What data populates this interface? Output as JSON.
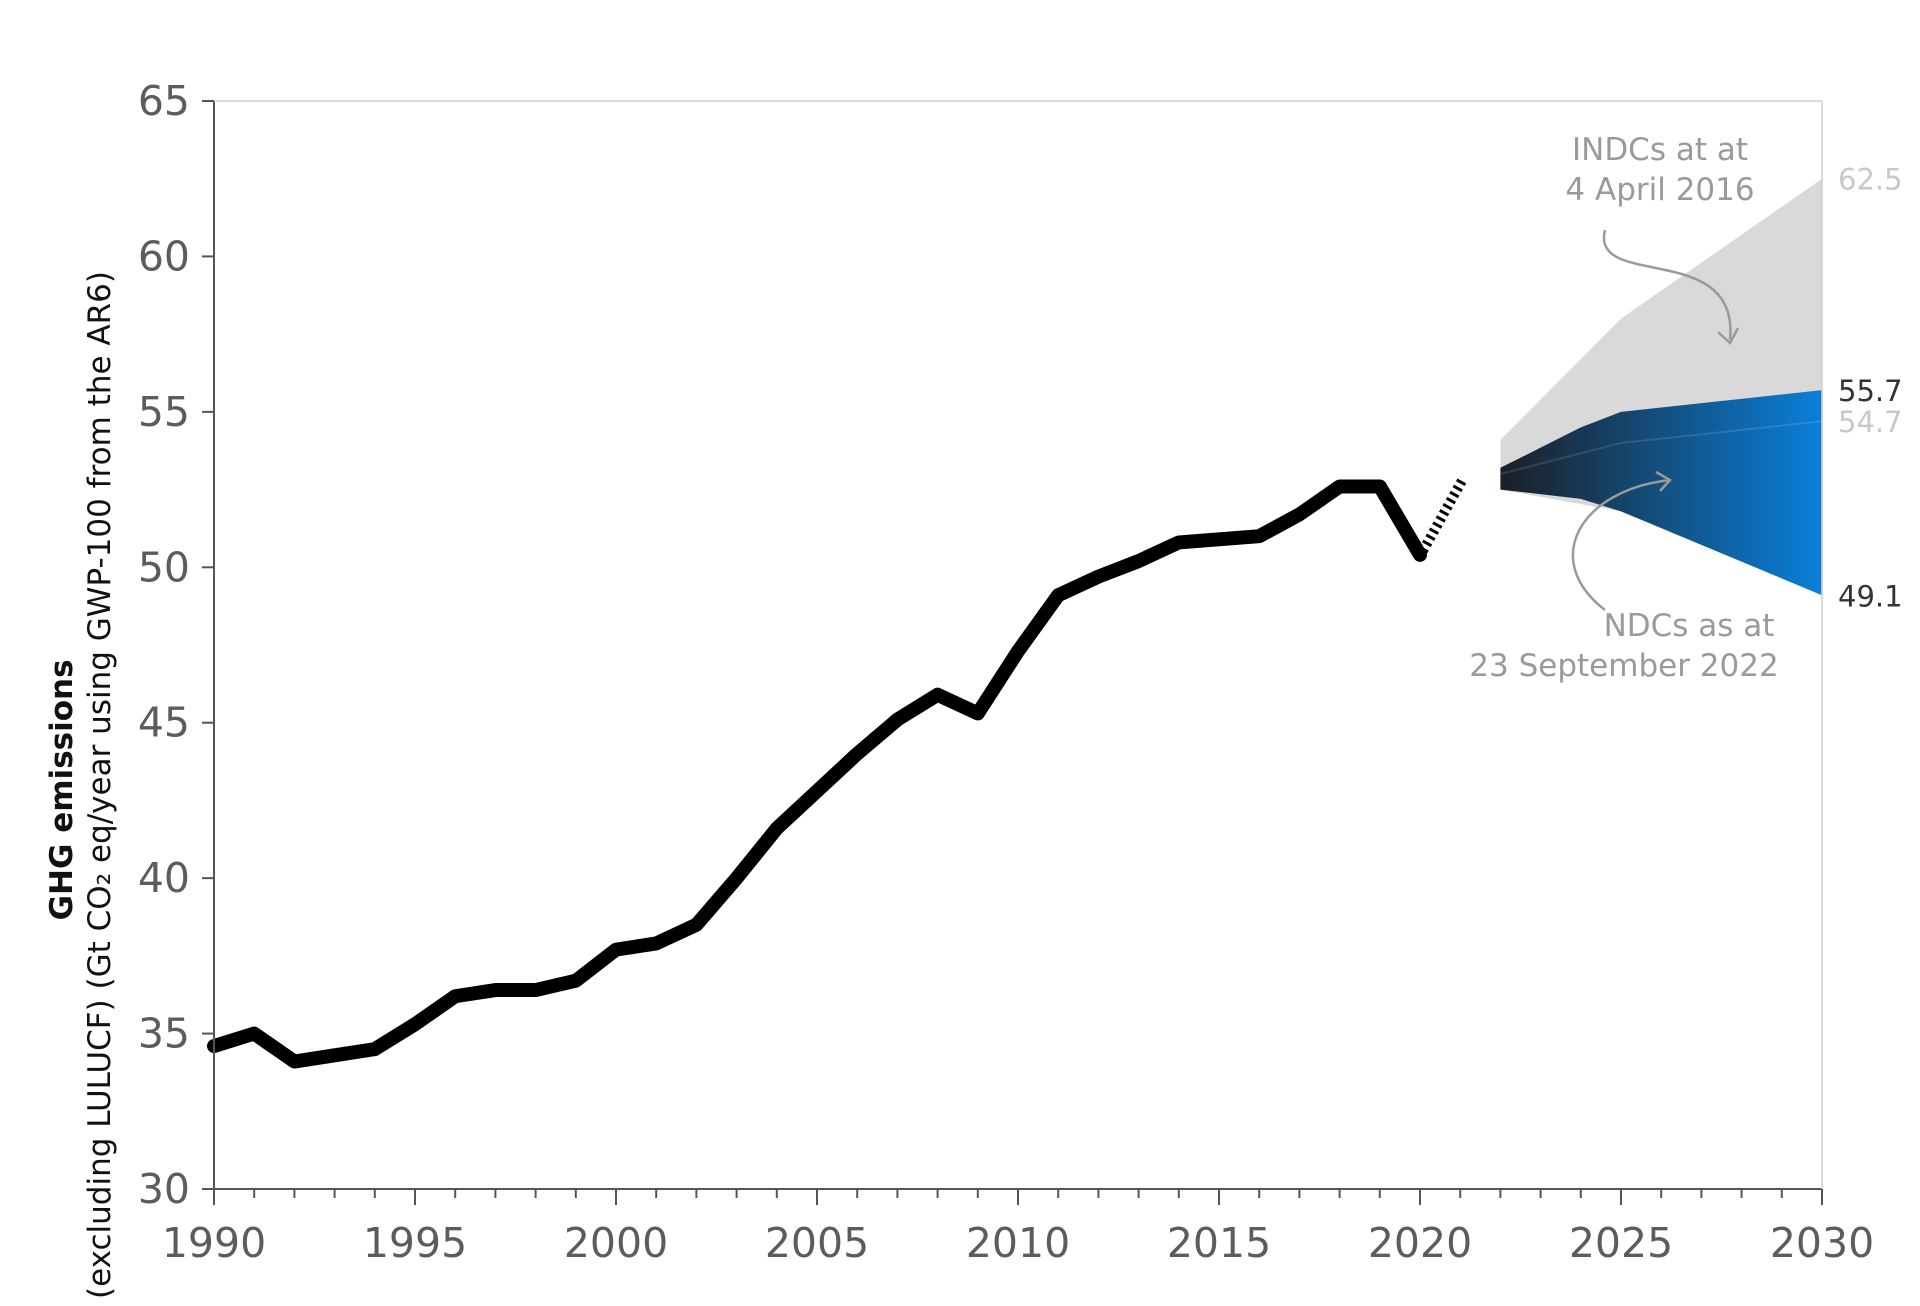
{
  "chart_data": {
    "type": "line",
    "title": "",
    "ylabel_line1": "GHG emissions",
    "ylabel_line2": "(excluding LULUCF) (Gt CO₂ eq/year using GWP-100 from the AR6)",
    "xlabel": "",
    "xlim": [
      1990,
      2030
    ],
    "ylim": [
      30,
      65
    ],
    "x_ticks": [
      1990,
      1995,
      2000,
      2005,
      2010,
      2015,
      2020,
      2025,
      2030
    ],
    "y_ticks": [
      30,
      35,
      40,
      45,
      50,
      55,
      60,
      65
    ],
    "grid": false,
    "historical": {
      "x": [
        1990,
        1991,
        1992,
        1993,
        1994,
        1995,
        1996,
        1997,
        1998,
        1999,
        2000,
        2001,
        2002,
        2003,
        2004,
        2005,
        2006,
        2007,
        2008,
        2009,
        2010,
        2011,
        2012,
        2013,
        2014,
        2015,
        2016,
        2017,
        2018,
        2019,
        2020
      ],
      "y": [
        34.6,
        35.0,
        34.1,
        34.3,
        34.5,
        35.3,
        36.2,
        36.4,
        36.4,
        36.7,
        37.7,
        37.9,
        38.5,
        40.0,
        41.6,
        42.8,
        44.0,
        45.1,
        45.9,
        45.3,
        47.3,
        49.1,
        49.7,
        50.2,
        50.8,
        50.9,
        51.0,
        51.7,
        52.6,
        52.6,
        50.4
      ]
    },
    "indc_range": {
      "x": [
        2022,
        2025,
        2030
      ],
      "upper": [
        54.1,
        58.0,
        62.5
      ],
      "lower": [
        52.5,
        51.8,
        49.1
      ]
    },
    "ndc_range": {
      "x": [
        2022,
        2024,
        2025,
        2030
      ],
      "upper": [
        53.2,
        54.5,
        55.0,
        55.7
      ],
      "lower": [
        52.5,
        52.2,
        51.8,
        49.1
      ]
    },
    "end_labels": [
      {
        "value": 62.5,
        "text": "62.5",
        "color": "#c8c8c8"
      },
      {
        "value": 55.7,
        "text": "55.7",
        "color": "#333333"
      },
      {
        "value": 54.7,
        "text": "54.7",
        "color": "#c8c8c8"
      },
      {
        "value": 49.1,
        "text": "49.1",
        "color": "#333333"
      }
    ],
    "annotations": {
      "indc": [
        "INDCs at at",
        "4 April 2016"
      ],
      "ndc": [
        "NDCs as at",
        "23 September 2022"
      ]
    },
    "colors": {
      "historical": "#000000",
      "indc_fill": "#d9d9d9",
      "ndc_dark": "#1c1f26",
      "ndc_light": "#0a7fd9",
      "axis": "#555555",
      "annotation": "#9a9a9a"
    }
  }
}
